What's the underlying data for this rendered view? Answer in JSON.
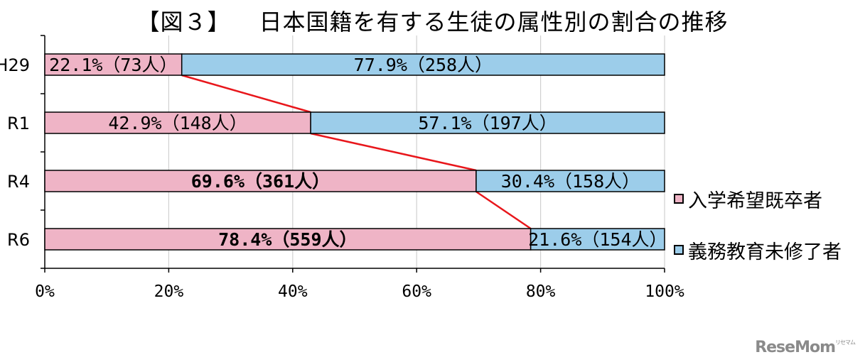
{
  "chart_data": {
    "type": "bar",
    "stacked": true,
    "orientation": "horizontal",
    "title_num": "【図３】",
    "title": "日本国籍を有する生徒の属性別の割合の推移",
    "categories": [
      "H29",
      "R1",
      "R4",
      "R6"
    ],
    "series": [
      {
        "name": "入学希望既卒者",
        "values": [
          22.1,
          42.9,
          69.6,
          78.4
        ],
        "labels": [
          "22.1%（73人）",
          "42.9%（148人）",
          "69.6%（361人）",
          "78.4%（559人）"
        ],
        "color": "#efb4c6"
      },
      {
        "name": "義務教育未修了者",
        "values": [
          77.9,
          57.1,
          30.4,
          21.6
        ],
        "labels": [
          "77.9%（258人）",
          "57.1%（197人）",
          "30.4%（158人）",
          "21.6%（154人）"
        ],
        "color": "#9ccdea"
      }
    ],
    "bold_label_rows": [
      2,
      3
    ],
    "xlim": [
      0,
      100
    ],
    "xticks": [
      "0%",
      "20%",
      "40%",
      "60%",
      "80%",
      "100%"
    ],
    "connector_color": "#e8161b",
    "grid": true,
    "legend_position": "right"
  },
  "watermark": {
    "text": "ReseMom",
    "tm": "リセマム"
  }
}
